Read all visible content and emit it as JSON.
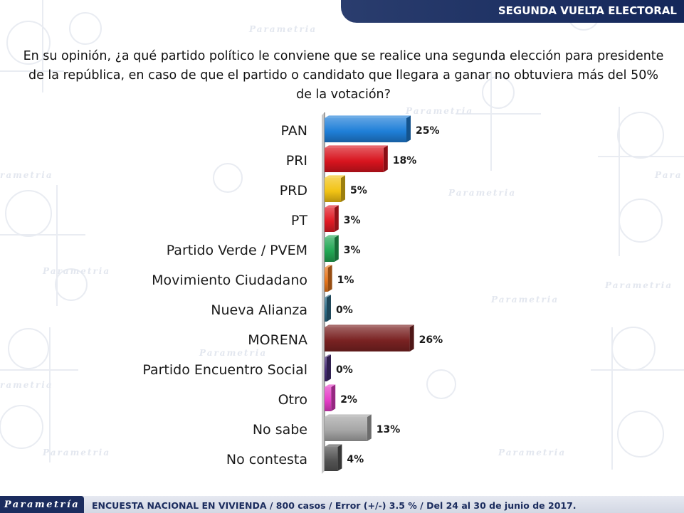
{
  "header": {
    "title": "SEGUNDA VUELTA ELECTORAL"
  },
  "question": "En su opinión, ¿a qué partido político le conviene que se realice una segunda elección para presidente de la república, en caso de que el partido o candidato que llegara a ganar no obtuviera más del 50% de la votación?",
  "footer": {
    "logo": "Parametría",
    "note": "ENCUESTA NACIONAL EN VIVIENDA / 800 casos / Error (+/-) 3.5 % / Del 24 al 30 de junio de 2017."
  },
  "chart_data": {
    "type": "bar",
    "orientation": "horizontal",
    "categories": [
      "PAN",
      "PRI",
      "PRD",
      "PT",
      "Partido Verde / PVEM",
      "Movimiento Ciudadano",
      "Nueva Alianza",
      "MORENA",
      "Partido Encuentro Social",
      "Otro",
      "No sabe",
      "No contesta"
    ],
    "values": [
      25,
      18,
      5,
      3,
      3,
      1,
      0,
      26,
      0,
      2,
      13,
      4
    ],
    "value_labels": [
      "25%",
      "18%",
      "5%",
      "3%",
      "3%",
      "1%",
      "0%",
      "26%",
      "0%",
      "2%",
      "13%",
      "4%"
    ],
    "colors": [
      "#1f7fd8",
      "#d8141e",
      "#f2c314",
      "#e21a24",
      "#22a854",
      "#e9761b",
      "#2f6f8a",
      "#7a2222",
      "#4a2f7a",
      "#e63ec8",
      "#a6a6a6",
      "#555555"
    ],
    "xlim": [
      0,
      30
    ],
    "grid": false,
    "legend": "none"
  }
}
